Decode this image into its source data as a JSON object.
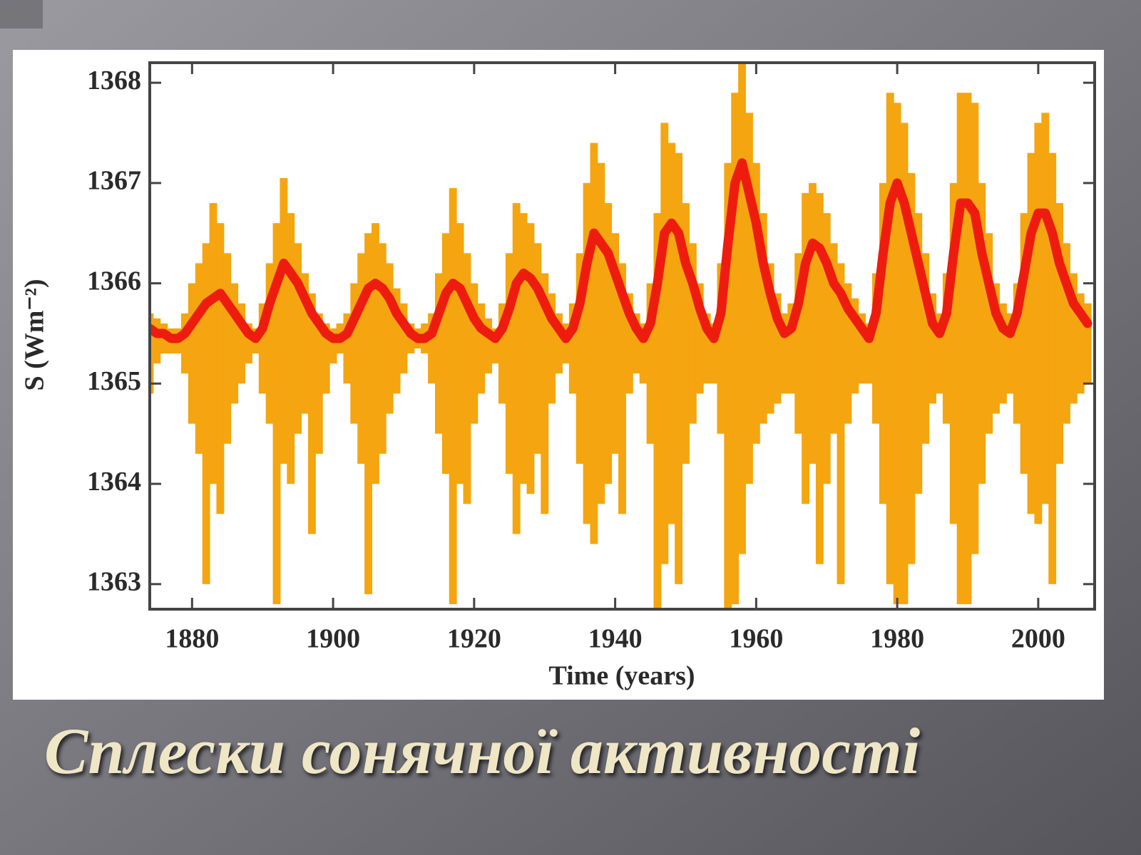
{
  "title": "Сплески сонячної активності",
  "chart_data": {
    "type": "line",
    "xlabel": "Time (years)",
    "ylabel": "S (Wm⁻²)",
    "x": [
      1874,
      1875,
      1876,
      1877,
      1878,
      1879,
      1880,
      1881,
      1882,
      1883,
      1884,
      1885,
      1886,
      1887,
      1888,
      1889,
      1890,
      1891,
      1892,
      1893,
      1894,
      1895,
      1896,
      1897,
      1898,
      1899,
      1900,
      1901,
      1902,
      1903,
      1904,
      1905,
      1906,
      1907,
      1908,
      1909,
      1910,
      1911,
      1912,
      1913,
      1914,
      1915,
      1916,
      1917,
      1918,
      1919,
      1920,
      1921,
      1922,
      1923,
      1924,
      1925,
      1926,
      1927,
      1928,
      1929,
      1930,
      1931,
      1932,
      1933,
      1934,
      1935,
      1936,
      1937,
      1938,
      1939,
      1940,
      1941,
      1942,
      1943,
      1944,
      1945,
      1946,
      1947,
      1948,
      1949,
      1950,
      1951,
      1952,
      1953,
      1954,
      1955,
      1956,
      1957,
      1958,
      1959,
      1960,
      1961,
      1962,
      1963,
      1964,
      1965,
      1966,
      1967,
      1968,
      1969,
      1970,
      1971,
      1972,
      1973,
      1974,
      1975,
      1976,
      1977,
      1978,
      1979,
      1980,
      1981,
      1982,
      1983,
      1984,
      1985,
      1986,
      1987,
      1988,
      1989,
      1990,
      1991,
      1992,
      1993,
      1994,
      1995,
      1996,
      1997,
      1998,
      1999,
      2000,
      2001,
      2002,
      2003,
      2004,
      2005,
      2006,
      2007
    ],
    "series": [
      {
        "color": "#f5a50f",
        "values": [
          1365.7,
          1365.65,
          1365.6,
          1365.55,
          1365.55,
          1365.7,
          1366.0,
          1366.2,
          1366.4,
          1366.8,
          1366.6,
          1366.3,
          1366.0,
          1365.8,
          1365.6,
          1365.55,
          1365.8,
          1366.2,
          1366.6,
          1367.05,
          1366.7,
          1366.4,
          1366.1,
          1365.9,
          1365.7,
          1365.6,
          1365.55,
          1365.6,
          1365.7,
          1366.0,
          1366.3,
          1366.5,
          1366.6,
          1366.4,
          1366.2,
          1365.95,
          1365.8,
          1365.6,
          1365.55,
          1365.6,
          1365.7,
          1366.1,
          1366.5,
          1366.95,
          1366.6,
          1366.3,
          1366.0,
          1365.8,
          1365.65,
          1365.55,
          1365.8,
          1366.3,
          1366.8,
          1366.7,
          1366.6,
          1366.4,
          1366.1,
          1365.9,
          1365.7,
          1365.6,
          1365.8,
          1366.3,
          1367.0,
          1367.4,
          1367.2,
          1366.8,
          1366.5,
          1366.2,
          1365.9,
          1365.7,
          1365.6,
          1366.0,
          1366.7,
          1367.6,
          1367.4,
          1367.3,
          1366.8,
          1366.4,
          1366.0,
          1365.7,
          1365.6,
          1366.2,
          1367.2,
          1367.9,
          1368.2,
          1367.7,
          1367.2,
          1366.7,
          1366.2,
          1365.9,
          1365.7,
          1365.8,
          1366.3,
          1366.9,
          1367.0,
          1366.9,
          1366.7,
          1366.4,
          1366.2,
          1366.0,
          1365.85,
          1365.7,
          1365.6,
          1366.1,
          1367.0,
          1367.9,
          1367.8,
          1367.6,
          1367.1,
          1366.7,
          1366.3,
          1365.9,
          1365.7,
          1366.1,
          1367.0,
          1367.9,
          1367.9,
          1367.8,
          1367.0,
          1366.5,
          1366.0,
          1365.8,
          1365.7,
          1366.0,
          1366.7,
          1367.3,
          1367.6,
          1367.7,
          1367.3,
          1366.8,
          1366.4,
          1366.1,
          1365.9,
          1365.8
        ],
        "low": [
          1364.9,
          1365.2,
          1365.3,
          1365.3,
          1365.3,
          1365.1,
          1364.6,
          1364.3,
          1363.0,
          1364.0,
          1363.7,
          1364.4,
          1364.8,
          1365.0,
          1365.2,
          1365.3,
          1364.9,
          1364.6,
          1362.8,
          1364.2,
          1364.0,
          1364.5,
          1364.7,
          1363.5,
          1364.3,
          1364.9,
          1365.2,
          1365.3,
          1365.0,
          1364.6,
          1364.2,
          1362.9,
          1364.0,
          1364.3,
          1364.7,
          1364.9,
          1365.1,
          1365.3,
          1365.35,
          1365.3,
          1365.0,
          1364.5,
          1364.1,
          1362.8,
          1364.0,
          1363.8,
          1364.6,
          1364.9,
          1365.1,
          1365.2,
          1364.8,
          1364.1,
          1363.5,
          1364.0,
          1363.9,
          1364.3,
          1363.7,
          1364.8,
          1365.1,
          1365.2,
          1364.9,
          1364.2,
          1363.6,
          1363.4,
          1363.8,
          1364.0,
          1364.3,
          1363.7,
          1364.9,
          1365.1,
          1365.0,
          1364.4,
          1362.75,
          1363.2,
          1363.6,
          1363.0,
          1364.2,
          1364.6,
          1364.9,
          1365.0,
          1365.0,
          1364.5,
          1362.75,
          1362.8,
          1363.3,
          1364.0,
          1364.4,
          1364.6,
          1364.7,
          1364.8,
          1364.9,
          1364.9,
          1364.5,
          1363.8,
          1364.2,
          1363.2,
          1364.0,
          1364.5,
          1363.0,
          1364.6,
          1364.9,
          1365.0,
          1365.0,
          1364.6,
          1363.8,
          1363.0,
          1362.8,
          1362.8,
          1363.2,
          1363.9,
          1364.4,
          1364.8,
          1364.9,
          1364.6,
          1363.6,
          1362.8,
          1362.8,
          1363.3,
          1364.0,
          1364.5,
          1364.7,
          1364.8,
          1364.9,
          1364.6,
          1364.1,
          1363.7,
          1363.6,
          1363.8,
          1363.0,
          1364.2,
          1364.6,
          1364.8,
          1364.9,
          1365.0
        ]
      },
      {
        "color": "#ee1c0e",
        "values": [
          1365.55,
          1365.5,
          1365.5,
          1365.45,
          1365.45,
          1365.5,
          1365.6,
          1365.7,
          1365.8,
          1365.85,
          1365.9,
          1365.8,
          1365.7,
          1365.6,
          1365.5,
          1365.45,
          1365.55,
          1365.8,
          1366.0,
          1366.2,
          1366.1,
          1366.0,
          1365.85,
          1365.7,
          1365.6,
          1365.5,
          1365.45,
          1365.45,
          1365.5,
          1365.65,
          1365.8,
          1365.95,
          1366.0,
          1365.95,
          1365.85,
          1365.7,
          1365.6,
          1365.5,
          1365.45,
          1365.45,
          1365.5,
          1365.7,
          1365.9,
          1366.0,
          1365.95,
          1365.8,
          1365.65,
          1365.55,
          1365.5,
          1365.45,
          1365.55,
          1365.75,
          1366.0,
          1366.1,
          1366.05,
          1365.95,
          1365.8,
          1365.65,
          1365.55,
          1365.45,
          1365.55,
          1365.8,
          1366.2,
          1366.5,
          1366.4,
          1366.3,
          1366.1,
          1365.9,
          1365.7,
          1365.55,
          1365.45,
          1365.6,
          1366.0,
          1366.5,
          1366.6,
          1366.5,
          1366.2,
          1366.0,
          1365.75,
          1365.55,
          1365.45,
          1365.7,
          1366.4,
          1367.0,
          1367.2,
          1366.9,
          1366.6,
          1366.2,
          1365.9,
          1365.65,
          1365.5,
          1365.55,
          1365.8,
          1366.2,
          1366.4,
          1366.35,
          1366.2,
          1366.0,
          1365.9,
          1365.75,
          1365.65,
          1365.55,
          1365.45,
          1365.7,
          1366.3,
          1366.8,
          1367.0,
          1366.8,
          1366.5,
          1366.2,
          1365.9,
          1365.6,
          1365.5,
          1365.7,
          1366.3,
          1366.8,
          1366.8,
          1366.7,
          1366.3,
          1366.0,
          1365.7,
          1365.55,
          1365.5,
          1365.7,
          1366.1,
          1366.5,
          1366.7,
          1366.7,
          1366.5,
          1366.2,
          1366.0,
          1365.8,
          1365.7,
          1365.6
        ]
      }
    ],
    "xlim": [
      1874,
      2008
    ],
    "ylim": [
      1362.75,
      1368.2
    ],
    "xticks": [
      1880,
      1900,
      1920,
      1940,
      1960,
      1980,
      2000
    ],
    "yticks": [
      1363,
      1364,
      1365,
      1366,
      1367,
      1368
    ]
  }
}
